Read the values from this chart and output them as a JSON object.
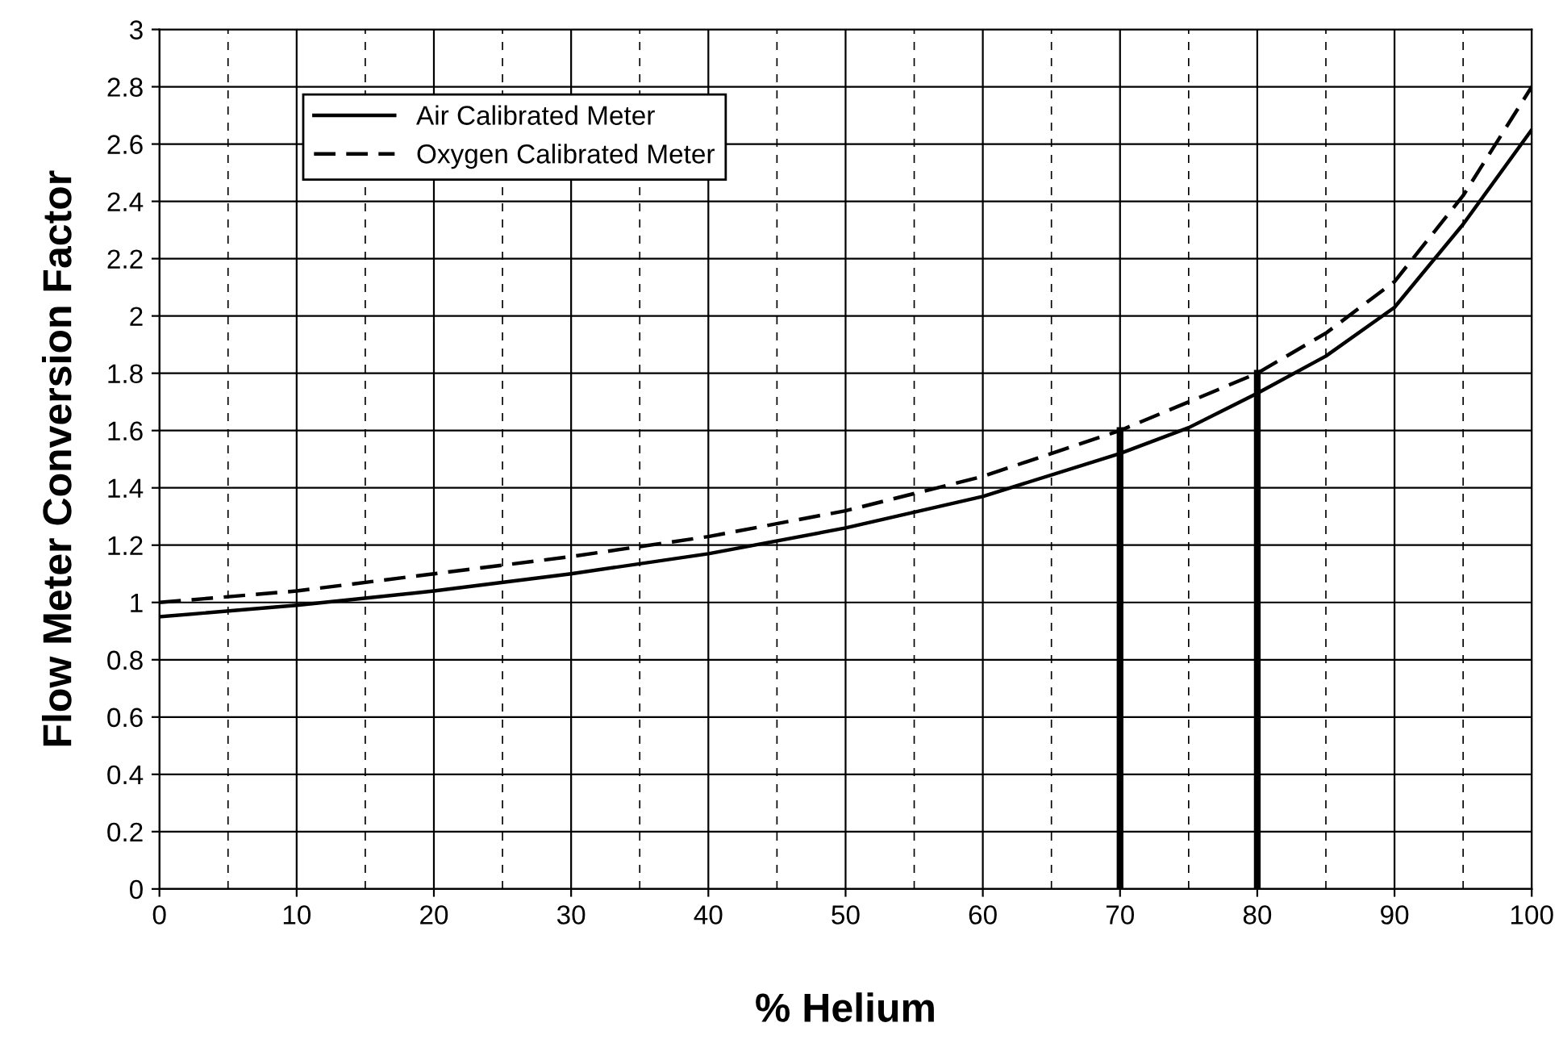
{
  "chart_data": {
    "type": "line",
    "xlabel": "% Helium",
    "ylabel": "Flow Meter Conversion Factor",
    "xlim": [
      0,
      100
    ],
    "xticks": [
      0,
      10,
      20,
      30,
      40,
      50,
      60,
      70,
      80,
      90,
      100
    ],
    "ylim": [
      0,
      3
    ],
    "yticks": [
      0,
      0.2,
      0.4,
      0.6,
      0.8,
      1,
      1.2,
      1.4,
      1.6,
      1.8,
      2,
      2.2,
      2.4,
      2.6,
      2.8,
      3
    ],
    "grid": true,
    "legend": "top left",
    "marker": "none",
    "series": [
      {
        "name": "Air Calibrated Meter",
        "color": "#000000",
        "line_style": "solid",
        "x": [
          0,
          10,
          20,
          30,
          40,
          50,
          60,
          70,
          75,
          80,
          85,
          90,
          95,
          100
        ],
        "values": [
          0.95,
          0.99,
          1.04,
          1.1,
          1.17,
          1.26,
          1.37,
          1.52,
          1.61,
          1.73,
          1.86,
          2.03,
          2.32,
          2.65
        ]
      },
      {
        "name": "Oxygen Calibrated Meter",
        "color": "#000000",
        "line_style": "dashed",
        "x": [
          0,
          10,
          20,
          30,
          40,
          50,
          60,
          70,
          80,
          85,
          90,
          95,
          100
        ],
        "values": [
          1.0,
          1.04,
          1.1,
          1.16,
          1.23,
          1.32,
          1.44,
          1.6,
          1.8,
          1.94,
          2.12,
          2.42,
          2.8
        ]
      },
      {
        "color": "#000000",
        "line_style": "solid",
        "x": [
          70,
          70
        ],
        "values": [
          0,
          1.6
        ]
      },
      {
        "color": "#000000",
        "line_style": "solid",
        "x": [
          80,
          80
        ],
        "values": [
          0,
          1.8
        ]
      }
    ]
  }
}
